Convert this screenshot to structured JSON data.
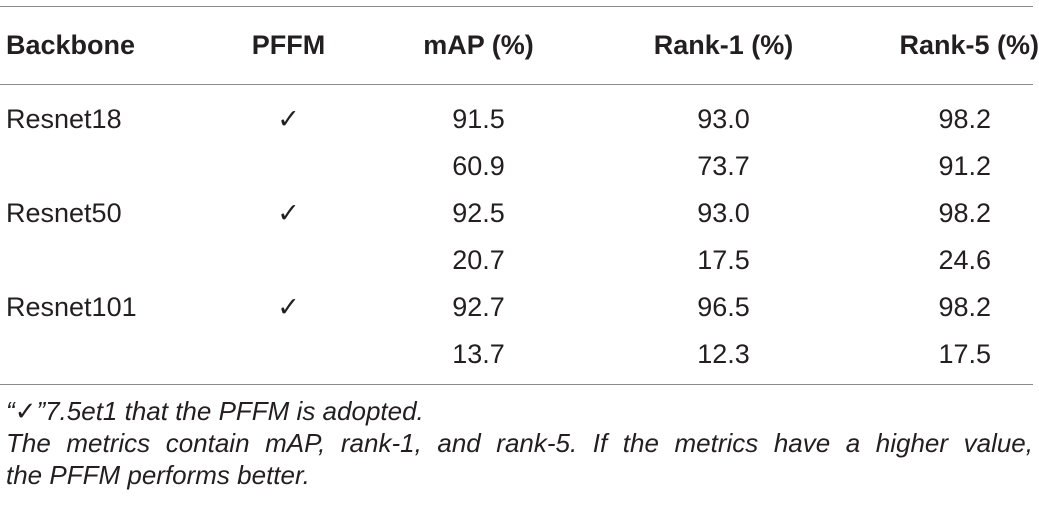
{
  "table": {
    "headers": [
      "Backbone",
      "PFFM",
      "mAP (%)",
      "Rank-1 (%)",
      "Rank-5 (%)"
    ],
    "rows": [
      {
        "backbone": "Resnet18",
        "pffm": "✓",
        "map": "91.5",
        "rank1": "93.0",
        "rank5": "98.2"
      },
      {
        "backbone": "",
        "pffm": "",
        "map": "60.9",
        "rank1": "73.7",
        "rank5": "91.2"
      },
      {
        "backbone": "Resnet50",
        "pffm": "✓",
        "map": "92.5",
        "rank1": "93.0",
        "rank5": "98.2"
      },
      {
        "backbone": "",
        "pffm": "",
        "map": "20.7",
        "rank1": "17.5",
        "rank5": "24.6"
      },
      {
        "backbone": "Resnet101",
        "pffm": "✓",
        "map": "92.7",
        "rank1": "96.5",
        "rank5": "98.2"
      },
      {
        "backbone": "",
        "pffm": "",
        "map": "13.7",
        "rank1": "12.3",
        "rank5": "17.5"
      }
    ]
  },
  "footnotes": {
    "note1": "“✓”7.5et1 that the PFFM is adopted.",
    "note2_line1": "The metrics contain mAP, rank-1, and rank-5. If the metrics have a higher value,",
    "note2_line2": "the PFFM performs better."
  }
}
